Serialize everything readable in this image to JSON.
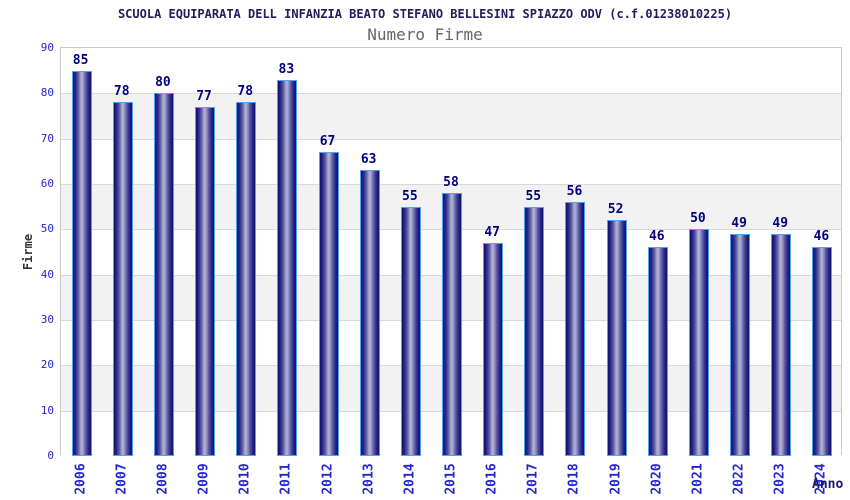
{
  "chart_data": {
    "type": "bar",
    "title": "SCUOLA EQUIPARATA DELL INFANZIA BEATO STEFANO BELLESINI SPIAZZO ODV (c.f.01238010225)",
    "subtitle": "Numero Firme",
    "xlabel": "Anno",
    "ylabel": "Firme",
    "categories": [
      "2006",
      "2007",
      "2008",
      "2009",
      "2010",
      "2011",
      "2012",
      "2013",
      "2014",
      "2015",
      "2016",
      "2017",
      "2018",
      "2019",
      "2020",
      "2021",
      "2022",
      "2023",
      "2024"
    ],
    "values": [
      85,
      78,
      80,
      77,
      78,
      83,
      67,
      63,
      55,
      58,
      47,
      55,
      56,
      52,
      46,
      50,
      49,
      49,
      46
    ],
    "ylim": [
      0,
      90
    ],
    "ytick_step": 10,
    "yticks": [
      0,
      10,
      20,
      30,
      40,
      50,
      60,
      70,
      80,
      90
    ],
    "grid": true,
    "legend": "none",
    "colors": {
      "bar_dark": "#10106e",
      "bar_light": "#b4b4d8",
      "bar_border": "#55a0ee",
      "axis_tick_blue": "#2626cc",
      "value_label_navy": "#000080",
      "title_navy": "#20205a",
      "subtitle_gray": "#666666",
      "band_gray": "#f2f2f2",
      "grid_line": "#d9d9d9",
      "plot_border": "#c9c9c9"
    }
  }
}
